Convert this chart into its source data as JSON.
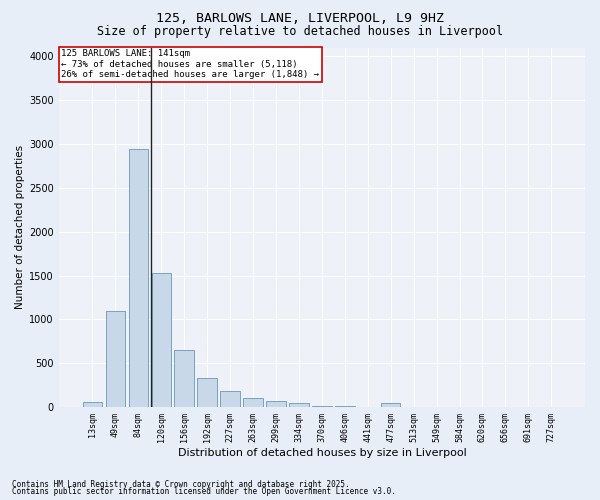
{
  "title1": "125, BARLOWS LANE, LIVERPOOL, L9 9HZ",
  "title2": "Size of property relative to detached houses in Liverpool",
  "xlabel": "Distribution of detached houses by size in Liverpool",
  "ylabel": "Number of detached properties",
  "bar_color": "#c8d8e8",
  "bar_edge_color": "#6699bb",
  "categories": [
    "13sqm",
    "49sqm",
    "84sqm",
    "120sqm",
    "156sqm",
    "192sqm",
    "227sqm",
    "263sqm",
    "299sqm",
    "334sqm",
    "370sqm",
    "406sqm",
    "441sqm",
    "477sqm",
    "513sqm",
    "549sqm",
    "584sqm",
    "620sqm",
    "656sqm",
    "691sqm",
    "727sqm"
  ],
  "values": [
    55,
    1100,
    2940,
    1530,
    650,
    330,
    185,
    100,
    75,
    50,
    15,
    10,
    5,
    45,
    5,
    5,
    5,
    5,
    5,
    5,
    5
  ],
  "ylim": [
    0,
    4100
  ],
  "yticks": [
    0,
    500,
    1000,
    1500,
    2000,
    2500,
    3000,
    3500,
    4000
  ],
  "annotation_text": "125 BARLOWS LANE: 141sqm\n← 73% of detached houses are smaller (5,118)\n26% of semi-detached houses are larger (1,848) →",
  "annotation_box_color": "#ffffff",
  "annotation_box_edgecolor": "#cc0000",
  "footer1": "Contains HM Land Registry data © Crown copyright and database right 2025.",
  "footer2": "Contains public sector information licensed under the Open Government Licence v3.0.",
  "bg_color": "#e8eef8",
  "plot_bg_color": "#eef2f8",
  "grid_color": "#ffffff",
  "title_fontsize": 9.5,
  "subtitle_fontsize": 8.5,
  "axis_label_fontsize": 7.5,
  "tick_fontsize": 6,
  "annotation_fontsize": 6.5,
  "footer_fontsize": 5.5,
  "vline_x_pos": 2.57
}
